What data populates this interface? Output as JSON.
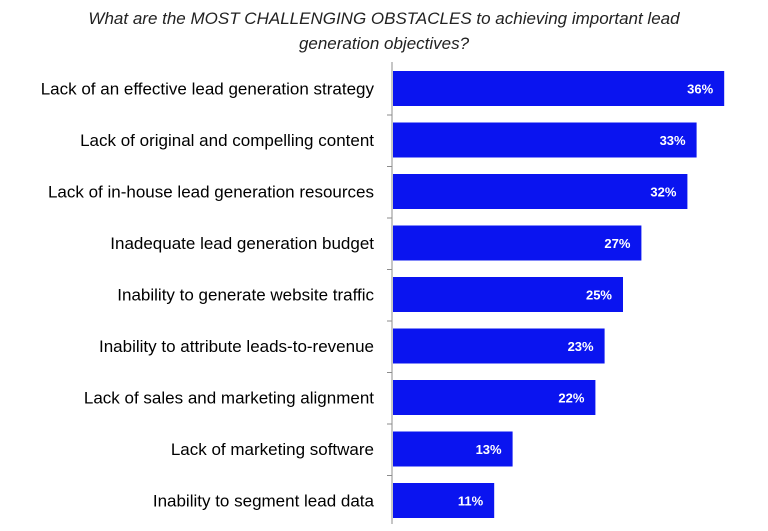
{
  "chart_data": {
    "type": "bar",
    "orientation": "horizontal",
    "title": "What are the MOST CHALLENGING OBSTACLES to achieving important lead generation objectives?",
    "title_lines": [
      "What are the MOST CHALLENGING OBSTACLES to achieving important lead",
      "generation objectives?"
    ],
    "categories": [
      "Lack of an effective lead generation strategy",
      "Lack of original and compelling content",
      "Lack of in-house lead generation resources",
      "Inadequate lead generation budget",
      "Inability to generate website traffic",
      "Inability to attribute leads-to-revenue",
      "Lack of sales and marketing alignment",
      "Lack of marketing software",
      "Inability to segment lead data"
    ],
    "values": [
      36,
      33,
      32,
      27,
      25,
      23,
      22,
      13,
      11
    ],
    "value_labels": [
      "36%",
      "33%",
      "32%",
      "27%",
      "25%",
      "23%",
      "22%",
      "13%",
      "11%"
    ],
    "xlabel": "",
    "ylabel": "",
    "xlim": [
      0,
      40
    ],
    "grid": false,
    "legend": "none",
    "bar_color": "#0a14f0"
  }
}
